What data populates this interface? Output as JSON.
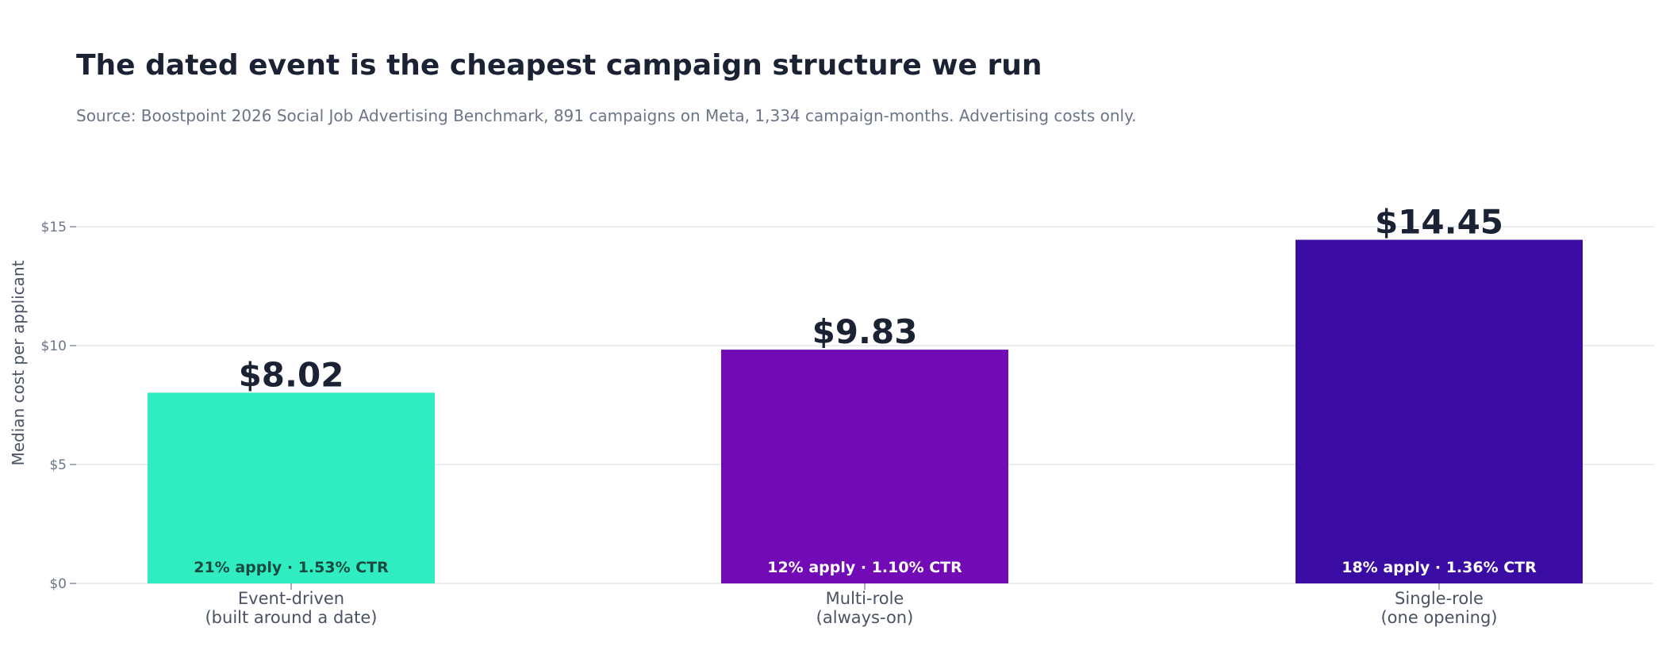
{
  "chart_data": {
    "type": "bar",
    "title": "The dated event is the cheapest campaign structure we run",
    "subtitle": "Source: Boostpoint 2026 Social Job Advertising Benchmark, 891 campaigns on Meta, 1,334 campaign-months. Advertising costs only.",
    "ylabel": "Median cost per applicant",
    "xlabel": "",
    "ylim": [
      0,
      16.2
    ],
    "y_ticks": [
      {
        "value": 0,
        "label": "$0"
      },
      {
        "value": 5,
        "label": "$5"
      },
      {
        "value": 10,
        "label": "$10"
      },
      {
        "value": 15,
        "label": "$15"
      }
    ],
    "grid": true,
    "categories": [
      {
        "line1": "Event-driven",
        "line2": "(built around a date)"
      },
      {
        "line1": "Multi-role",
        "line2": "(always-on)"
      },
      {
        "line1": "Single-role",
        "line2": "(one opening)"
      }
    ],
    "values": [
      8.02,
      9.83,
      14.45
    ],
    "value_labels": [
      "$8.02",
      "$9.83",
      "$14.45"
    ],
    "annotations": [
      "21% apply · 1.53% CTR",
      "12% apply · 1.10% CTR",
      "18% apply · 1.36% CTR"
    ],
    "bar_colors": [
      "#2fedc0",
      "#720bb5",
      "#3a0ca3"
    ],
    "annotation_colors": [
      "#1a4a3f",
      "#ffffff",
      "#ffffff"
    ],
    "colors": {
      "title": "#1a2233",
      "subtitle": "#6b7588",
      "axis_text": "#6b7588",
      "category_text": "#4a5263",
      "grid": "#e3e7ee",
      "value_label": "#1a2233"
    }
  }
}
